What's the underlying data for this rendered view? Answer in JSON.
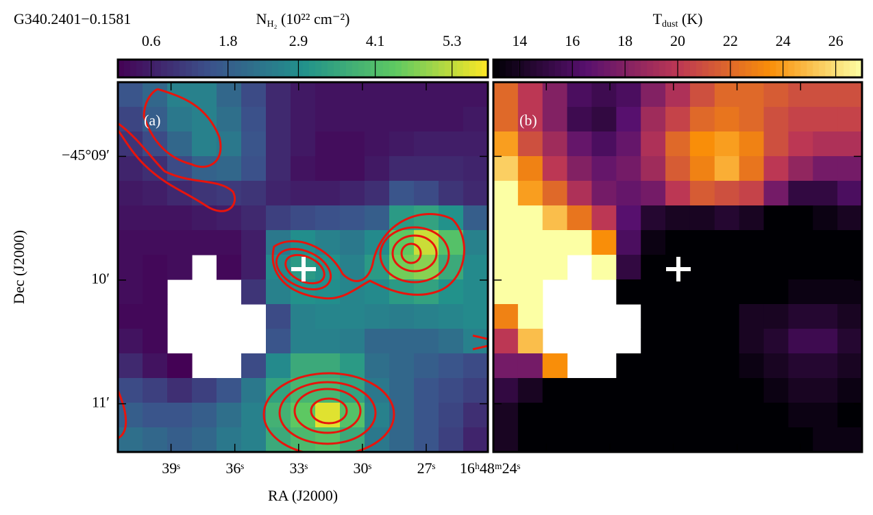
{
  "title": "G340.2401−0.1581",
  "chart_data": [
    {
      "type": "heatmap",
      "panel_label": "(a)",
      "colormap": "viridis",
      "values": [
        [
          1.6,
          2.0,
          2.6,
          2.6,
          2.0,
          1.4,
          0.8,
          0.5,
          0.4,
          0.4,
          0.4,
          0.4,
          0.4,
          0.4,
          0.4
        ],
        [
          1.3,
          1.8,
          2.4,
          2.6,
          2.2,
          1.5,
          0.8,
          0.5,
          0.4,
          0.4,
          0.4,
          0.4,
          0.4,
          0.4,
          0.5
        ],
        [
          1.0,
          1.4,
          2.0,
          2.6,
          2.4,
          1.6,
          0.8,
          0.5,
          0.3,
          0.3,
          0.4,
          0.5,
          0.6,
          0.6,
          0.6
        ],
        [
          0.7,
          0.9,
          1.4,
          1.9,
          2.0,
          1.5,
          0.8,
          0.4,
          0.3,
          0.3,
          0.5,
          0.8,
          0.8,
          0.8,
          0.7
        ],
        [
          0.5,
          0.6,
          0.8,
          1.0,
          1.1,
          1.0,
          0.7,
          0.6,
          0.6,
          0.7,
          0.9,
          1.6,
          1.4,
          1.0,
          0.8
        ],
        [
          0.4,
          0.4,
          0.4,
          0.5,
          0.6,
          0.8,
          1.2,
          1.4,
          1.5,
          1.6,
          1.8,
          3.2,
          3.4,
          3.0,
          1.8
        ],
        [
          0.3,
          0.3,
          0.3,
          0.3,
          0.3,
          0.6,
          2.4,
          2.9,
          2.6,
          2.4,
          2.8,
          4.4,
          5.4,
          4.2,
          2.6
        ],
        [
          0.3,
          0.2,
          0.3,
          null,
          0.2,
          0.6,
          2.8,
          3.2,
          3.0,
          2.6,
          3.2,
          4.6,
          4.8,
          3.6,
          2.8
        ],
        [
          0.3,
          0.2,
          null,
          null,
          null,
          1.0,
          2.6,
          3.0,
          2.9,
          2.7,
          2.8,
          3.2,
          3.4,
          3.0,
          2.8
        ],
        [
          0.2,
          0.2,
          null,
          null,
          null,
          null,
          1.4,
          2.6,
          2.7,
          2.7,
          2.6,
          2.5,
          2.6,
          2.7,
          2.8
        ],
        [
          0.4,
          0.2,
          null,
          null,
          null,
          null,
          1.6,
          2.6,
          2.6,
          2.5,
          2.0,
          2.0,
          2.0,
          2.2,
          2.6
        ],
        [
          0.8,
          0.4,
          0.1,
          null,
          null,
          1.4,
          2.8,
          3.6,
          3.6,
          3.2,
          2.2,
          2.0,
          1.8,
          1.6,
          1.4
        ],
        [
          1.4,
          1.2,
          0.9,
          1.2,
          1.6,
          2.4,
          3.4,
          3.9,
          3.9,
          3.4,
          2.4,
          2.0,
          1.6,
          1.4,
          1.2
        ],
        [
          1.8,
          1.6,
          1.6,
          1.8,
          2.2,
          2.6,
          3.8,
          4.4,
          5.6,
          4.2,
          2.6,
          2.0,
          1.6,
          1.3,
          0.9
        ],
        [
          2.2,
          2.0,
          1.8,
          2.0,
          2.4,
          2.6,
          3.6,
          4.0,
          4.2,
          3.6,
          2.4,
          2.0,
          1.6,
          1.2,
          0.7
        ]
      ],
      "xlabel": "RA (J2000)",
      "ylabel": "Dec (J2000)",
      "xlim": [
        41.5,
        24.1
      ],
      "xticks": [
        {
          "value": 39,
          "label": "39ˢ"
        },
        {
          "value": 36,
          "label": "36ˢ"
        },
        {
          "value": 33,
          "label": "33ˢ"
        },
        {
          "value": 30,
          "label": "30ˢ"
        },
        {
          "value": 27,
          "label": "27ˢ"
        },
        {
          "value": 24,
          "label": "16ʰ48ᵐ24ˢ"
        }
      ],
      "ylim": [
        11.39,
        8.4
      ],
      "yticks": [
        {
          "value": 9,
          "label": "−45°09′"
        },
        {
          "value": 10,
          "label": "10′"
        },
        {
          "value": 11,
          "label": "11′"
        }
      ],
      "colorbar": {
        "label": "N",
        "label_sub": "H₂",
        "label_rest": " (10²² cm⁻²)",
        "lim": [
          0.08,
          5.86
        ],
        "ticks": [
          0.6,
          1.8,
          2.9,
          4.1,
          5.3
        ]
      }
    },
    {
      "type": "heatmap",
      "panel_label": "(b)",
      "colormap": "inferno",
      "values": [
        [
          22,
          20,
          18,
          16,
          15.5,
          16,
          18,
          19.5,
          21,
          22,
          22,
          21.5,
          21,
          21,
          21
        ],
        [
          22,
          20,
          18,
          15.5,
          15,
          16.5,
          19,
          20.5,
          22,
          22.5,
          22,
          21,
          20.5,
          20.5,
          20.5
        ],
        [
          24,
          21,
          19,
          17,
          16,
          17,
          19.5,
          22,
          23.5,
          24,
          23,
          21,
          20,
          19.5,
          19.5
        ],
        [
          25.5,
          23,
          20,
          18,
          17,
          17.5,
          19,
          21.5,
          23,
          24.5,
          22.5,
          20,
          18.5,
          17.5,
          17.5
        ],
        [
          27,
          24,
          22,
          19.5,
          17.5,
          17,
          17.5,
          20,
          21.5,
          21,
          20.5,
          17.5,
          15,
          15,
          16
        ],
        [
          27,
          27,
          25,
          22.5,
          20,
          16.5,
          14.5,
          14,
          14,
          14.5,
          14,
          13,
          13,
          13.5,
          14
        ],
        [
          27,
          27,
          27,
          27,
          23.5,
          16,
          13.5,
          13,
          13,
          13,
          13,
          13,
          13,
          13,
          13
        ],
        [
          27,
          27,
          27,
          null,
          27,
          15,
          13,
          13,
          13,
          13,
          13,
          13,
          13,
          13,
          13
        ],
        [
          27,
          27,
          null,
          null,
          null,
          13,
          13,
          13,
          13,
          13,
          13,
          13,
          13.5,
          13.5,
          13.5
        ],
        [
          23,
          27,
          null,
          null,
          null,
          null,
          13,
          13,
          13,
          13,
          14,
          14,
          14.5,
          14.5,
          14
        ],
        [
          20,
          25,
          null,
          null,
          null,
          null,
          13,
          13,
          13,
          13,
          14,
          14.5,
          15.5,
          15.5,
          14.5
        ],
        [
          17.5,
          17.5,
          23.5,
          null,
          null,
          13,
          13,
          13,
          13,
          13,
          13.5,
          14,
          14.5,
          14.5,
          14
        ],
        [
          15,
          14,
          13,
          13,
          13,
          13,
          13,
          13,
          13,
          13,
          13,
          13.5,
          14,
          14,
          13.5
        ],
        [
          14,
          13,
          13,
          13,
          13,
          13,
          13,
          13,
          13,
          13,
          13,
          13,
          13.5,
          13.5,
          13
        ],
        [
          14,
          13,
          13,
          13,
          13,
          13,
          13,
          13,
          13,
          13,
          13,
          13,
          13,
          13.5,
          13.5
        ]
      ],
      "colorbar": {
        "label": "T",
        "label_sub": "dust",
        "label_rest": " (K)",
        "lim": [
          13,
          27
        ],
        "ticks": [
          14,
          16,
          18,
          20,
          22,
          24,
          26
        ]
      }
    }
  ]
}
